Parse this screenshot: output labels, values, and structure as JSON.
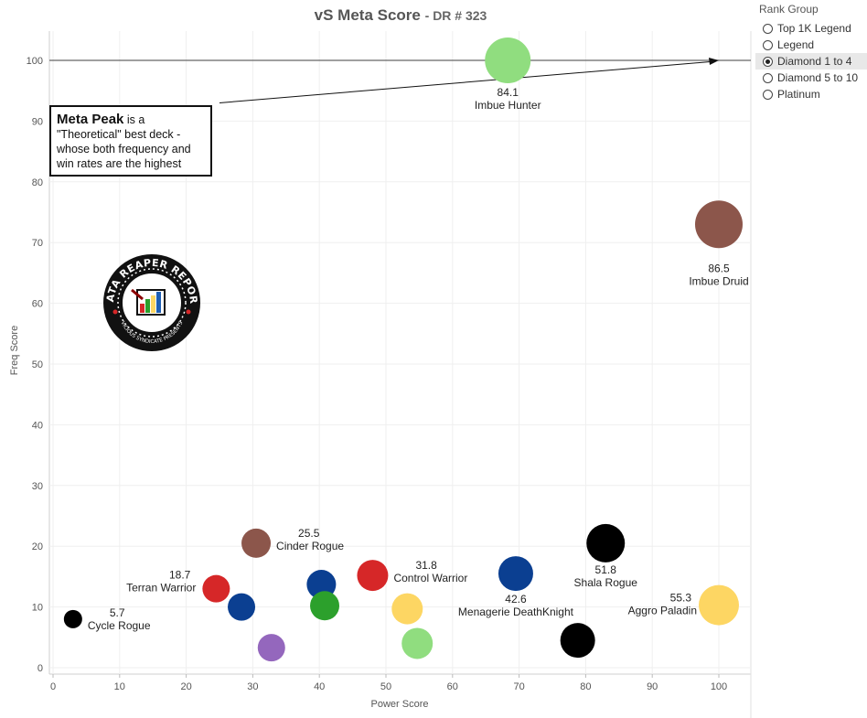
{
  "title": {
    "main": "vS Meta Score",
    "sub": "DR # 323"
  },
  "legend": {
    "title": "Rank Group",
    "items": [
      {
        "label": "Top 1K Legend",
        "selected": false
      },
      {
        "label": "Legend",
        "selected": false
      },
      {
        "label": "Diamond 1 to 4",
        "selected": true
      },
      {
        "label": "Diamond 5 to 10",
        "selected": false
      },
      {
        "label": "Platinum",
        "selected": false
      }
    ]
  },
  "callout": {
    "bold": "Meta Peak",
    "text": " is a \"Theoretical\" best deck - whose both frequency and win rates are the highest"
  },
  "logo": {
    "text": "DATA REAPER REPORT",
    "subtext": "VICIOUS SYNDICATE PRESENTS"
  },
  "chart_data": {
    "type": "scatter",
    "title": "vS Meta Score - DR # 323",
    "xlabel": "Power Score",
    "ylabel": "Freq Score",
    "xlim": [
      0,
      105
    ],
    "ylim": [
      -1,
      105
    ],
    "xticks": [
      0,
      10,
      20,
      30,
      40,
      50,
      60,
      70,
      80,
      90,
      100
    ],
    "yticks": [
      0,
      10,
      20,
      30,
      40,
      50,
      60,
      70,
      80,
      90,
      100
    ],
    "grid": true,
    "reference_line": {
      "y": 100
    },
    "arrow": {
      "from": [
        25,
        93
      ],
      "to": [
        100,
        100
      ]
    },
    "points": [
      {
        "x": 3,
        "y": 8,
        "size": 10,
        "color": "#000000",
        "score": "5.7",
        "name": "Cycle Rogue"
      },
      {
        "x": 24.5,
        "y": 13,
        "size": 15,
        "color": "#d62728",
        "score": "18.7",
        "name": "Terran Warrior"
      },
      {
        "x": 28.3,
        "y": 10,
        "size": 15,
        "color": "#0b3f91",
        "score": "",
        "name": ""
      },
      {
        "x": 30.5,
        "y": 20.5,
        "size": 16,
        "color": "#8c564b",
        "score": "25.5",
        "name": "Cinder Rogue"
      },
      {
        "x": 32.8,
        "y": 3.3,
        "size": 15,
        "color": "#9467bd",
        "score": "",
        "name": ""
      },
      {
        "x": 40.3,
        "y": 13.7,
        "size": 16,
        "color": "#0b3f91",
        "score": "",
        "name": ""
      },
      {
        "x": 40.8,
        "y": 10.2,
        "size": 16,
        "color": "#2ca02c",
        "score": "",
        "name": ""
      },
      {
        "x": 48,
        "y": 15.2,
        "size": 17,
        "color": "#d62728",
        "score": "31.8",
        "name": "Control Warrior"
      },
      {
        "x": 53.2,
        "y": 9.7,
        "size": 17,
        "color": "#fdd663",
        "score": "",
        "name": ""
      },
      {
        "x": 54.7,
        "y": 4,
        "size": 17,
        "color": "#90dd7f",
        "score": "",
        "name": ""
      },
      {
        "x": 69.5,
        "y": 15.5,
        "size": 19,
        "color": "#0b3f91",
        "score": "42.6",
        "name": "Menagerie DeathKnight"
      },
      {
        "x": 78.8,
        "y": 4.5,
        "size": 19,
        "color": "#000000",
        "score": "",
        "name": ""
      },
      {
        "x": 83,
        "y": 20.5,
        "size": 21,
        "color": "#000000",
        "score": "51.8",
        "name": "Shala Rogue"
      },
      {
        "x": 100,
        "y": 10.3,
        "size": 22,
        "color": "#fdd663",
        "score": "55.3",
        "name": "Aggro Paladin"
      },
      {
        "x": 68.3,
        "y": 100,
        "size": 25,
        "color": "#90dd7f",
        "score": "84.1",
        "name": "Imbue Hunter"
      },
      {
        "x": 100,
        "y": 73,
        "size": 26,
        "color": "#8c564b",
        "score": "86.5",
        "name": "Imbue Druid"
      }
    ]
  }
}
